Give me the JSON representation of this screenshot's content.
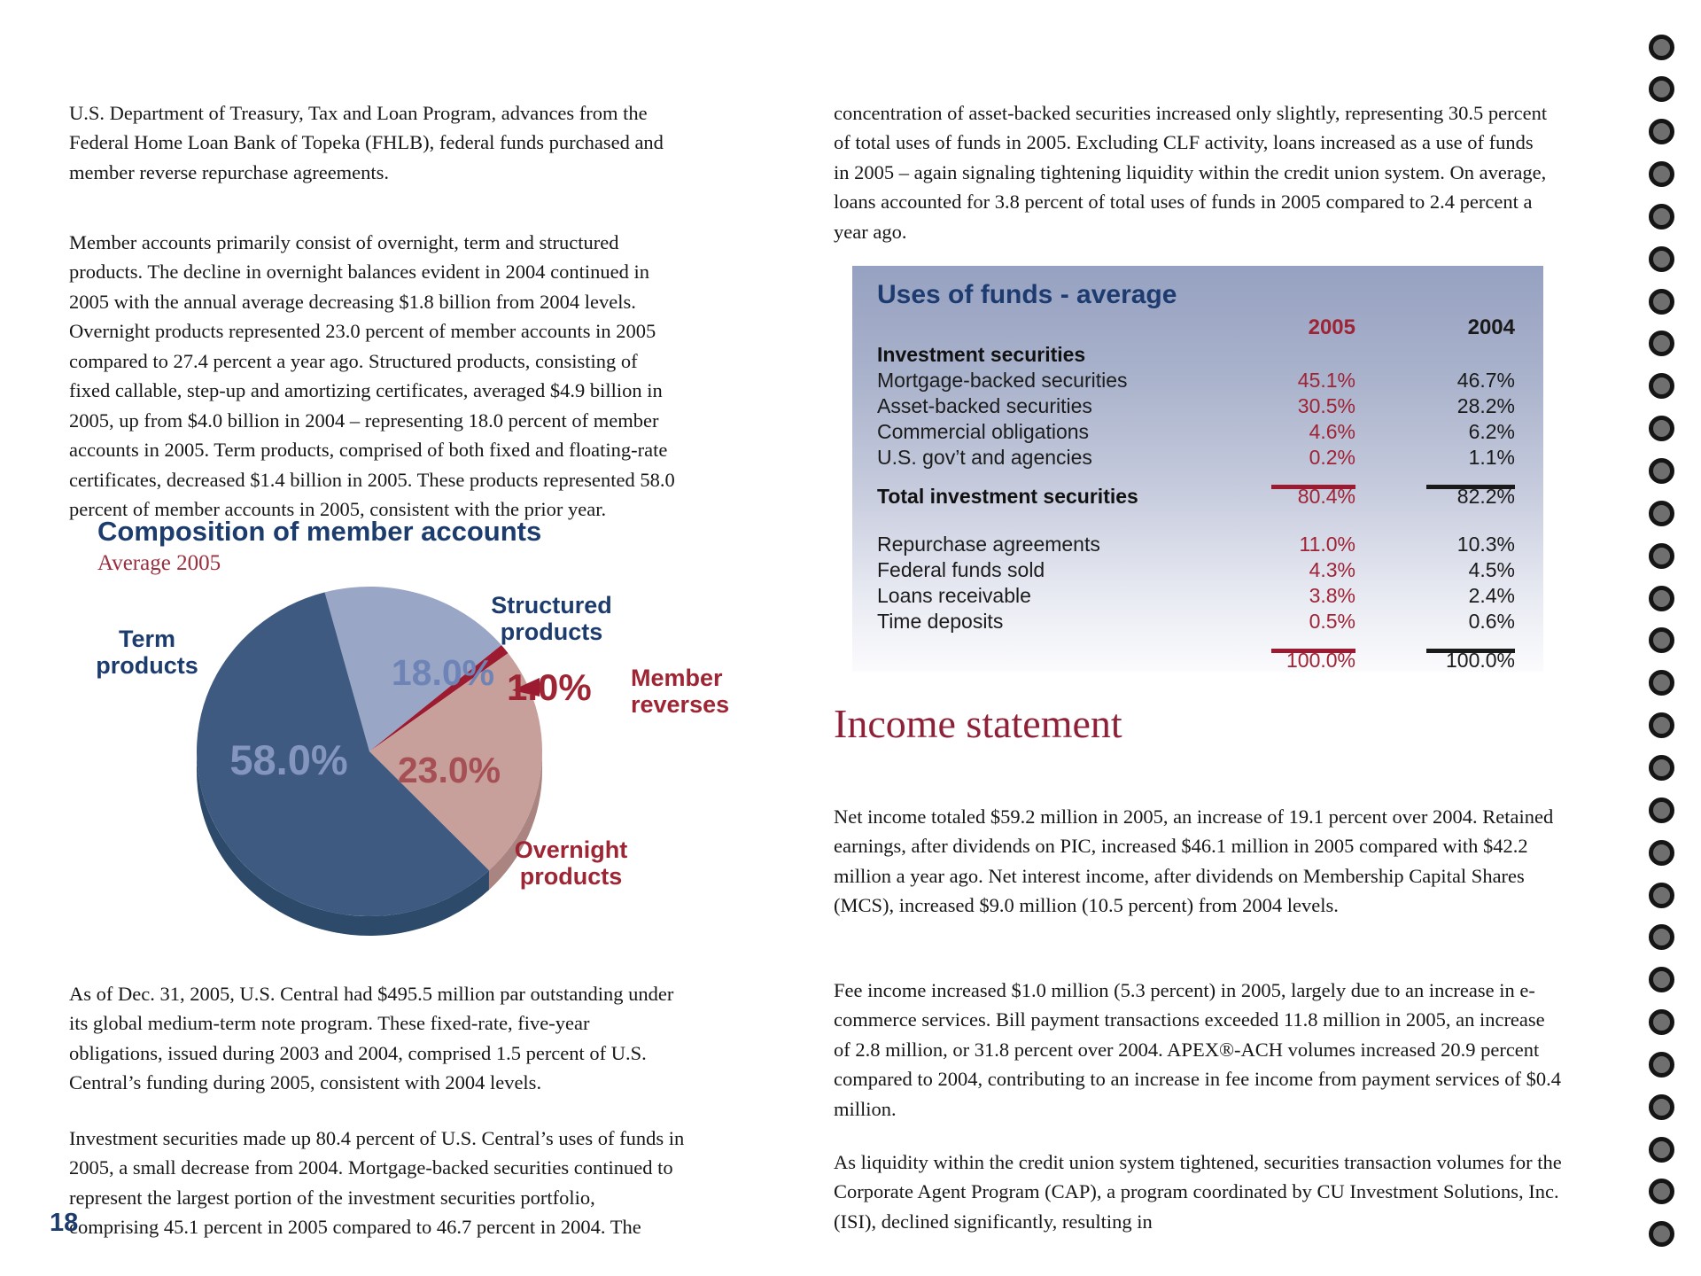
{
  "page": {
    "number": "18"
  },
  "binding": {
    "holes": 29
  },
  "left_column": {
    "paragraphs": [
      "U.S. Department of Treasury, Tax and Loan Program, advances from the Federal Home Loan Bank of Topeka (FHLB), federal funds purchased and member reverse repurchase agreements.",
      "Member accounts primarily consist of overnight, term and structured products.  The decline in overnight balances evident in 2004 continued in 2005 with the annual average decreasing $1.8 billion from 2004 levels. Overnight products represented 23.0 percent of member accounts in 2005 compared to 27.4 percent a year ago. Structured products, consisting of fixed callable, step-up and amortizing certificates, averaged $4.9 billion in 2005, up from $4.0 billion in 2004 – representing 18.0 percent of member accounts in 2005. Term products, comprised of both fixed and floating-rate certificates, decreased $1.4 billion in 2005. These products represented 58.0 percent of member accounts in 2005, consistent with the prior year.",
      "As of Dec. 31, 2005, U.S. Central had $495.5 million par outstanding under its global medium-term note program. These fixed-rate, five-year obligations, issued during 2003 and 2004, comprised 1.5 percent of U.S. Central’s funding during 2005, consistent with 2004 levels.",
      "Investment securities made up 80.4 percent of U.S. Central’s uses of funds in 2005, a small decrease from 2004. Mortgage-backed securities continued to represent the largest portion of the investment securities portfolio, comprising 45.1 percent in 2005 compared to 46.7 percent in 2004. The"
    ]
  },
  "right_column": {
    "heading": "Income statement",
    "paragraphs": [
      "concentration of asset-backed securities increased only slightly, representing 30.5 percent of total uses of funds in 2005. Excluding CLF activity, loans increased as a use of funds in 2005 – again signaling tightening liquidity within the credit union system. On average, loans accounted for 3.8 percent of total uses of funds in 2005 compared to 2.4 percent a year ago.",
      "Net income totaled $59.2 million in 2005, an increase of 19.1 percent over 2004. Retained earnings, after dividends on PIC, increased $46.1 million in 2005 compared with $42.2 million a year ago. Net interest income, after dividends on Membership Capital Shares (MCS), increased $9.0 million (10.5 percent) from 2004 levels.",
      "Fee income increased $1.0 million (5.3 percent) in 2005, largely due to an increase in e-commerce services. Bill payment transactions exceeded 11.8 million in 2005, an increase of 2.8 million, or 31.8 percent over 2004. APEX®-ACH volumes increased 20.9 percent compared to 2004, contributing to an increase in fee income from payment services of $0.4 million.",
      "As liquidity within the credit union system tightened, securities transaction volumes for the Corporate Agent Program (CAP), a program coordinated by CU Investment Solutions, Inc. (ISI), declined significantly, resulting in"
    ]
  },
  "chart_data": [
    {
      "type": "pie",
      "title": "Composition of member accounts",
      "subtitle": "Average 2005",
      "start_angle_deg": -15,
      "slices": [
        {
          "label": "Structured products",
          "value": 18.0,
          "display": "18.0%",
          "color": "#9aa6c6",
          "dark": "#7e8cb0"
        },
        {
          "label": "Member reverses",
          "value": 1.0,
          "display": "1.0%",
          "color": "#9c1b30",
          "dark": "#7c1526"
        },
        {
          "label": "Overnight products",
          "value": 23.0,
          "display": "23.0%",
          "color": "#c79f9b",
          "dark": "#a98480"
        },
        {
          "label": "Term products",
          "value": 58.0,
          "display": "58.0%",
          "color": "#3f5a80",
          "dark": "#2e4a6b"
        }
      ]
    },
    {
      "type": "table",
      "title": "Uses of funds - average",
      "columns": [
        "2005",
        "2004"
      ],
      "sections": [
        {
          "header": "Investment securities",
          "rows": [
            [
              "Mortgage-backed securities",
              "45.1%",
              "46.7%"
            ],
            [
              "Asset-backed securities",
              "30.5%",
              "28.2%"
            ],
            [
              "Commercial obligations",
              "4.6%",
              "6.2%"
            ],
            [
              "U.S. gov’t and agencies",
              "0.2%",
              "1.1%"
            ]
          ],
          "total": [
            "Total investment securities",
            "80.4%",
            "82.2%"
          ]
        },
        {
          "header": null,
          "rows": [
            [
              "Repurchase agreements",
              "11.0%",
              "10.3%"
            ],
            [
              "Federal funds sold",
              "4.3%",
              "4.5%"
            ],
            [
              "Loans receivable",
              "3.8%",
              "2.4%"
            ],
            [
              "Time deposits",
              "0.5%",
              "0.6%"
            ]
          ],
          "total": [
            "",
            "100.0%",
            "100.0%"
          ]
        }
      ]
    }
  ]
}
